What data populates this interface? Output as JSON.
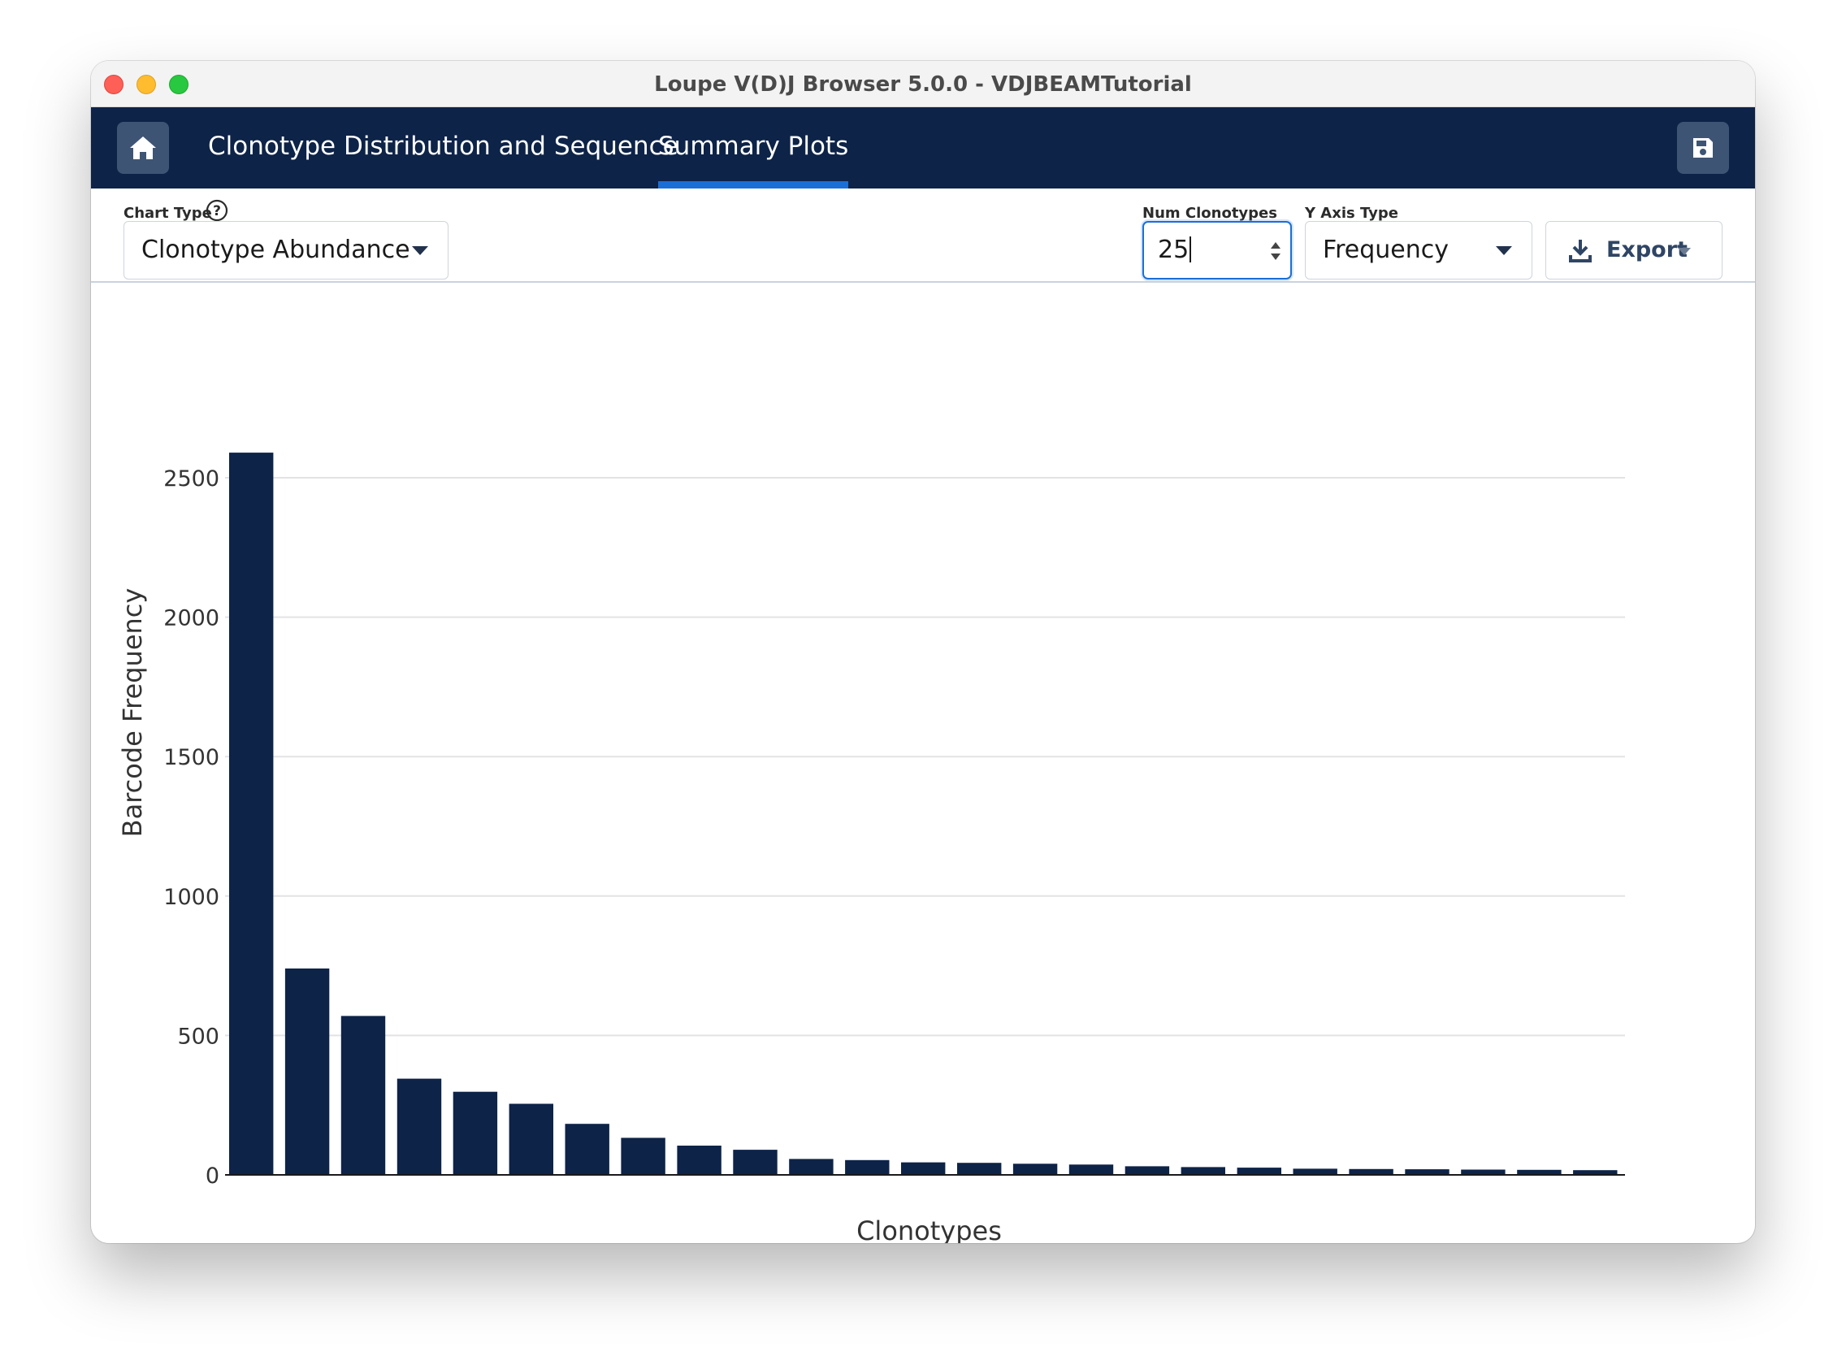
{
  "window": {
    "title": "Loupe V(D)J Browser 5.0.0 - VDJBEAMTutorial"
  },
  "nav": {
    "tabs": [
      {
        "label": "Clonotype Distribution and Sequence",
        "active": false
      },
      {
        "label": "Summary Plots",
        "active": true
      }
    ],
    "home_icon": "home-icon",
    "save_icon": "save-icon"
  },
  "controls": {
    "chart_type": {
      "label": "Chart Type",
      "value": "Clonotype Abundance",
      "help_icon": "question-circle-icon"
    },
    "num_clonotypes": {
      "label": "Num Clonotypes",
      "value": "25"
    },
    "y_axis_type": {
      "label": "Y Axis Type",
      "value": "Frequency"
    },
    "export": {
      "label": "Export",
      "icon": "download-icon"
    }
  },
  "colors": {
    "navbar": "#0d2348",
    "accent": "#1a6fd6",
    "bar": "#0d2348"
  },
  "chart_data": {
    "type": "bar",
    "xlabel": "Clonotypes",
    "ylabel": "Barcode Frequency",
    "ylim": [
      0,
      2600
    ],
    "yticks": [
      0,
      500,
      1000,
      1500,
      2000,
      2500
    ],
    "grid": true,
    "values": [
      2590,
      740,
      570,
      345,
      298,
      255,
      183,
      133,
      105,
      90,
      57,
      53,
      45,
      43,
      40,
      37,
      31,
      28,
      26,
      22,
      21,
      20,
      19,
      18,
      17
    ]
  }
}
